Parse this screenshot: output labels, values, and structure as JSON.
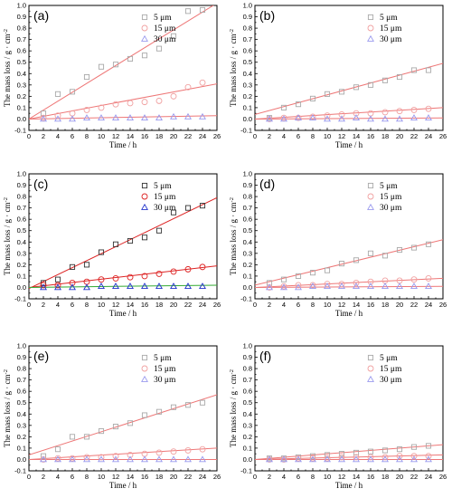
{
  "chart_data": [
    {
      "type": "scatter",
      "panel": "(a)",
      "xlabel": "Time / h",
      "ylabel": "The mass loss / g · cm",
      "ylabel_sup": "-2",
      "xlim": [
        0,
        26
      ],
      "ylim": [
        -0.1,
        1.0
      ],
      "xticks": [
        0,
        2,
        4,
        6,
        8,
        10,
        12,
        14,
        16,
        18,
        20,
        22,
        24,
        26
      ],
      "yticks": [
        -0.1,
        0.0,
        0.1,
        0.2,
        0.3,
        0.4,
        0.5,
        0.6,
        0.7,
        0.8,
        0.9,
        1.0
      ],
      "series": [
        {
          "name": "5 μm",
          "marker": "square",
          "color": "#a9a9a9",
          "x": [
            2,
            4,
            6,
            8,
            10,
            12,
            14,
            16,
            18,
            20,
            22,
            24
          ],
          "y": [
            0.05,
            0.22,
            0.24,
            0.37,
            0.46,
            0.48,
            0.53,
            0.56,
            0.62,
            0.73,
            0.95,
            0.96
          ],
          "fit": [
            [
              0,
              0.0
            ],
            [
              26,
              1.02
            ]
          ]
        },
        {
          "name": "15 μm",
          "marker": "circle",
          "color": "#f0a0a0",
          "x": [
            2,
            4,
            6,
            8,
            10,
            12,
            14,
            16,
            18,
            20,
            22,
            24
          ],
          "y": [
            0.01,
            0.03,
            0.05,
            0.08,
            0.1,
            0.13,
            0.14,
            0.15,
            0.16,
            0.2,
            0.28,
            0.32
          ],
          "fit": [
            [
              0,
              0.0
            ],
            [
              26,
              0.31
            ]
          ]
        },
        {
          "name": "30 μm",
          "marker": "triangle",
          "color": "#9999ee",
          "x": [
            2,
            4,
            6,
            8,
            10,
            12,
            14,
            16,
            18,
            20,
            22,
            24
          ],
          "y": [
            0.0,
            0.0,
            0.0,
            0.01,
            0.01,
            0.01,
            0.01,
            0.01,
            0.01,
            0.02,
            0.02,
            0.02
          ],
          "fit": [
            [
              0,
              0.0
            ],
            [
              26,
              0.03
            ]
          ]
        }
      ]
    },
    {
      "type": "scatter",
      "panel": "(b)",
      "xlabel": "Time / h",
      "ylabel": "The mass loss / g · cm",
      "ylabel_sup": "-2",
      "xlim": [
        0,
        26
      ],
      "ylim": [
        -0.1,
        1.0
      ],
      "xticks": [
        0,
        2,
        4,
        6,
        8,
        10,
        12,
        14,
        16,
        18,
        20,
        22,
        24,
        26
      ],
      "yticks": [
        -0.1,
        0.0,
        0.1,
        0.2,
        0.3,
        0.4,
        0.5,
        0.6,
        0.7,
        0.8,
        0.9,
        1.0
      ],
      "series": [
        {
          "name": "5 μm",
          "marker": "square",
          "color": "#a9a9a9",
          "x": [
            2,
            4,
            6,
            8,
            10,
            12,
            14,
            16,
            18,
            20,
            22,
            24
          ],
          "y": [
            0.01,
            0.1,
            0.13,
            0.18,
            0.22,
            0.24,
            0.28,
            0.3,
            0.34,
            0.37,
            0.43,
            0.43
          ],
          "fit": [
            [
              0,
              0.04
            ],
            [
              26,
              0.49
            ]
          ]
        },
        {
          "name": "15 μm",
          "marker": "circle",
          "color": "#f0a0a0",
          "x": [
            2,
            4,
            6,
            8,
            10,
            12,
            14,
            16,
            18,
            20,
            22,
            24
          ],
          "y": [
            0.0,
            0.01,
            0.01,
            0.02,
            0.03,
            0.04,
            0.05,
            0.05,
            0.06,
            0.07,
            0.08,
            0.09
          ],
          "fit": [
            [
              0,
              0.0
            ],
            [
              26,
              0.1
            ]
          ]
        },
        {
          "name": "30 μm",
          "marker": "triangle",
          "color": "#9999ee",
          "x": [
            2,
            4,
            6,
            8,
            10,
            12,
            14,
            16,
            18,
            20,
            22,
            24
          ],
          "y": [
            0.0,
            0.0,
            0.01,
            0.01,
            0.0,
            0.0,
            0.01,
            0.0,
            0.0,
            0.0,
            0.01,
            0.01
          ],
          "fit": [
            [
              0,
              0.0
            ],
            [
              26,
              0.01
            ]
          ]
        }
      ]
    },
    {
      "type": "scatter",
      "panel": "(c)",
      "xlabel": "Time / h",
      "ylabel": "The mass loss / g · cm",
      "ylabel_sup": "-2",
      "xlim": [
        0,
        26
      ],
      "ylim": [
        -0.1,
        1.0
      ],
      "xticks": [
        0,
        2,
        4,
        6,
        8,
        10,
        12,
        14,
        16,
        18,
        20,
        22,
        24,
        26
      ],
      "yticks": [
        -0.1,
        0.0,
        0.1,
        0.2,
        0.3,
        0.4,
        0.5,
        0.6,
        0.7,
        0.8,
        0.9,
        1.0
      ],
      "series": [
        {
          "name": "5 μm",
          "marker": "square",
          "color": "#333333",
          "x": [
            2,
            4,
            6,
            8,
            10,
            12,
            14,
            16,
            18,
            20,
            22,
            24
          ],
          "y": [
            0.04,
            0.07,
            0.18,
            0.2,
            0.31,
            0.38,
            0.41,
            0.44,
            0.5,
            0.66,
            0.7,
            0.72
          ],
          "fit": [
            [
              0,
              -0.01
            ],
            [
              26,
              0.79
            ]
          ]
        },
        {
          "name": "15 μm",
          "marker": "circle",
          "color": "#dd2222",
          "x": [
            2,
            4,
            6,
            8,
            10,
            12,
            14,
            16,
            18,
            20,
            22,
            24
          ],
          "y": [
            0.02,
            0.02,
            0.04,
            0.05,
            0.07,
            0.08,
            0.09,
            0.1,
            0.12,
            0.14,
            0.16,
            0.18
          ],
          "fit": [
            [
              0,
              0.0
            ],
            [
              26,
              0.19
            ]
          ]
        },
        {
          "name": "30 μm",
          "marker": "triangle",
          "color": "#2233cc",
          "x": [
            2,
            4,
            6,
            8,
            10,
            12,
            14,
            16,
            18,
            20,
            22,
            24
          ],
          "y": [
            0.0,
            0.0,
            0.0,
            0.0,
            0.01,
            0.01,
            0.01,
            0.01,
            0.01,
            0.01,
            0.01,
            0.01
          ],
          "fit": [
            [
              0,
              0.0
            ],
            [
              26,
              0.02
            ]
          ]
        }
      ]
    },
    {
      "type": "scatter",
      "panel": "(d)",
      "xlabel": "Time / h",
      "ylabel": "The mass loss / g · cm",
      "ylabel_sup": "-2",
      "xlim": [
        0,
        26
      ],
      "ylim": [
        -0.1,
        1.0
      ],
      "xticks": [
        0,
        2,
        4,
        6,
        8,
        10,
        12,
        14,
        16,
        18,
        20,
        22,
        24,
        26
      ],
      "yticks": [
        -0.1,
        0.0,
        0.1,
        0.2,
        0.3,
        0.4,
        0.5,
        0.6,
        0.7,
        0.8,
        0.9,
        1.0
      ],
      "series": [
        {
          "name": "5 μm",
          "marker": "square",
          "color": "#a9a9a9",
          "x": [
            2,
            4,
            6,
            8,
            10,
            12,
            14,
            16,
            18,
            20,
            22,
            24
          ],
          "y": [
            0.04,
            0.07,
            0.1,
            0.13,
            0.15,
            0.21,
            0.24,
            0.3,
            0.28,
            0.33,
            0.35,
            0.38
          ],
          "fit": [
            [
              0,
              0.02
            ],
            [
              26,
              0.42
            ]
          ]
        },
        {
          "name": "15 μm",
          "marker": "circle",
          "color": "#f0a0a0",
          "x": [
            2,
            4,
            6,
            8,
            10,
            12,
            14,
            16,
            18,
            20,
            22,
            24
          ],
          "y": [
            0.0,
            0.01,
            0.02,
            0.02,
            0.03,
            0.03,
            0.04,
            0.05,
            0.06,
            0.06,
            0.07,
            0.08
          ],
          "fit": [
            [
              0,
              0.0
            ],
            [
              26,
              0.08
            ]
          ]
        },
        {
          "name": "30 μm",
          "marker": "triangle",
          "color": "#9999ee",
          "x": [
            2,
            4,
            6,
            8,
            10,
            12,
            14,
            16,
            18,
            20,
            22,
            24
          ],
          "y": [
            0.0,
            0.0,
            0.0,
            0.01,
            0.01,
            0.01,
            0.01,
            0.01,
            0.01,
            0.01,
            0.01,
            0.01
          ],
          "fit": [
            [
              0,
              0.0
            ],
            [
              26,
              0.01
            ]
          ]
        }
      ]
    },
    {
      "type": "scatter",
      "panel": "(e)",
      "xlabel": "Time / h",
      "ylabel": "The mass loss / g · cm",
      "ylabel_sup": "-2",
      "xlim": [
        0,
        26
      ],
      "ylim": [
        -0.1,
        1.0
      ],
      "xticks": [
        0,
        2,
        4,
        6,
        8,
        10,
        12,
        14,
        16,
        18,
        20,
        22,
        24,
        26
      ],
      "yticks": [
        -0.1,
        0.0,
        0.1,
        0.2,
        0.3,
        0.4,
        0.5,
        0.6,
        0.7,
        0.8,
        0.9,
        1.0
      ],
      "series": [
        {
          "name": "5 μm",
          "marker": "square",
          "color": "#a9a9a9",
          "x": [
            2,
            4,
            6,
            8,
            10,
            12,
            14,
            16,
            18,
            20,
            22,
            24
          ],
          "y": [
            0.03,
            0.09,
            0.2,
            0.2,
            0.25,
            0.29,
            0.32,
            0.39,
            0.42,
            0.46,
            0.48,
            0.5
          ],
          "fit": [
            [
              0,
              0.04
            ],
            [
              26,
              0.57
            ]
          ]
        },
        {
          "name": "15 μm",
          "marker": "circle",
          "color": "#f0a0a0",
          "x": [
            2,
            4,
            6,
            8,
            10,
            12,
            14,
            16,
            18,
            20,
            22,
            24
          ],
          "y": [
            0.0,
            0.01,
            0.01,
            0.02,
            0.02,
            0.03,
            0.04,
            0.05,
            0.06,
            0.07,
            0.08,
            0.09
          ],
          "fit": [
            [
              0,
              0.0
            ],
            [
              26,
              0.1
            ]
          ]
        },
        {
          "name": "30 μm",
          "marker": "triangle",
          "color": "#9999ee",
          "x": [
            2,
            4,
            6,
            8,
            10,
            12,
            14,
            16,
            18,
            20,
            22,
            24
          ],
          "y": [
            0.0,
            0.0,
            0.0,
            0.0,
            0.0,
            0.0,
            0.0,
            0.0,
            0.0,
            0.0,
            0.0,
            0.0
          ],
          "fit": [
            [
              0,
              0.0
            ],
            [
              26,
              0.0
            ]
          ]
        }
      ]
    },
    {
      "type": "scatter",
      "panel": "(f)",
      "xlabel": "Time / h",
      "ylabel": "The mass loss / g · cm",
      "ylabel_sup": "-2",
      "xlim": [
        0,
        26
      ],
      "ylim": [
        -0.1,
        1.0
      ],
      "xticks": [
        0,
        2,
        4,
        6,
        8,
        10,
        12,
        14,
        16,
        18,
        20,
        22,
        24,
        26
      ],
      "yticks": [
        -0.1,
        0.0,
        0.1,
        0.2,
        0.3,
        0.4,
        0.5,
        0.6,
        0.7,
        0.8,
        0.9,
        1.0
      ],
      "series": [
        {
          "name": "5 μm",
          "marker": "square",
          "color": "#a9a9a9",
          "x": [
            2,
            4,
            6,
            8,
            10,
            12,
            14,
            16,
            18,
            20,
            22,
            24
          ],
          "y": [
            0.01,
            0.01,
            0.02,
            0.03,
            0.04,
            0.05,
            0.06,
            0.07,
            0.08,
            0.09,
            0.11,
            0.12
          ],
          "fit": [
            [
              0,
              0.0
            ],
            [
              26,
              0.13
            ]
          ]
        },
        {
          "name": "15 μm",
          "marker": "circle",
          "color": "#f0a0a0",
          "x": [
            2,
            4,
            6,
            8,
            10,
            12,
            14,
            16,
            18,
            20,
            22,
            24
          ],
          "y": [
            0.0,
            0.0,
            0.01,
            0.01,
            0.01,
            0.02,
            0.02,
            0.02,
            0.02,
            0.03,
            0.03,
            0.03
          ],
          "fit": [
            [
              0,
              0.0
            ],
            [
              26,
              0.04
            ]
          ]
        },
        {
          "name": "30 μm",
          "marker": "triangle",
          "color": "#9999ee",
          "x": [
            2,
            4,
            6,
            8,
            10,
            12,
            14,
            16,
            18,
            20,
            22,
            24
          ],
          "y": [
            0.0,
            0.0,
            0.0,
            0.0,
            0.0,
            0.0,
            0.0,
            0.0,
            0.0,
            0.0,
            0.0,
            0.0
          ],
          "fit": [
            [
              0,
              0.0
            ],
            [
              26,
              0.0
            ]
          ]
        }
      ]
    }
  ]
}
